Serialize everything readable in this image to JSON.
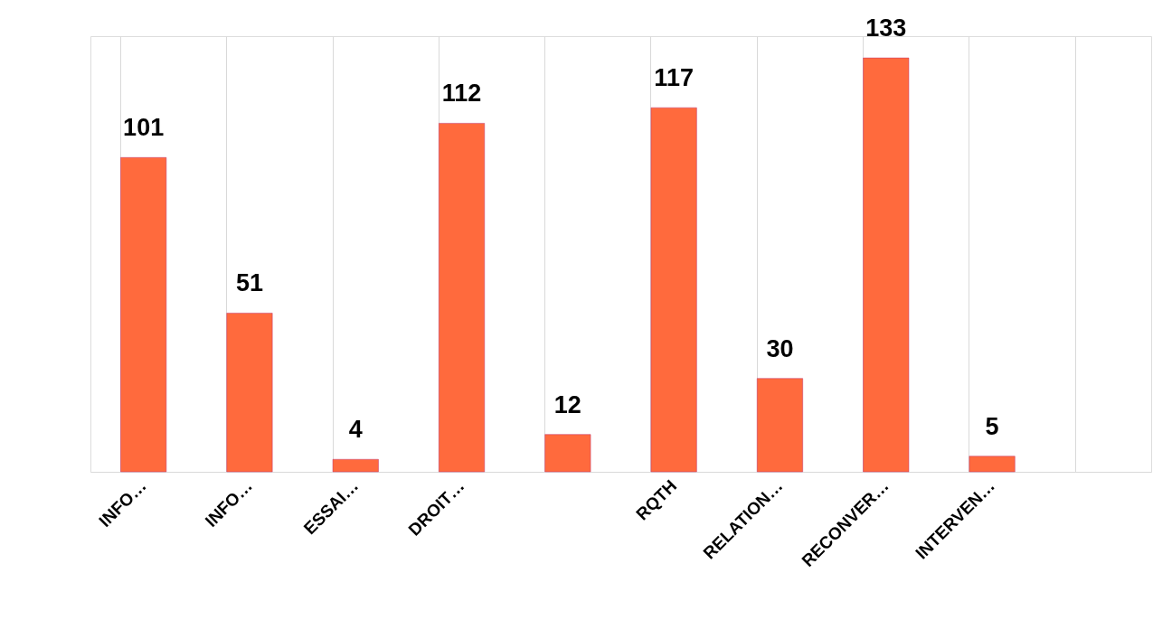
{
  "chart_data": {
    "type": "bar",
    "categories": [
      "INFO…",
      "INFO…",
      "ESSAI…",
      "DROIT…",
      null,
      "RQTH",
      "RELATION…",
      "RECONVER…",
      "INTERVEN…",
      null
    ],
    "values": [
      101,
      51,
      4,
      112,
      12,
      117,
      30,
      133,
      5,
      null
    ],
    "color": "#ff6a3d",
    "data_labels": true,
    "grid": "x",
    "tick_labels": "x"
  }
}
